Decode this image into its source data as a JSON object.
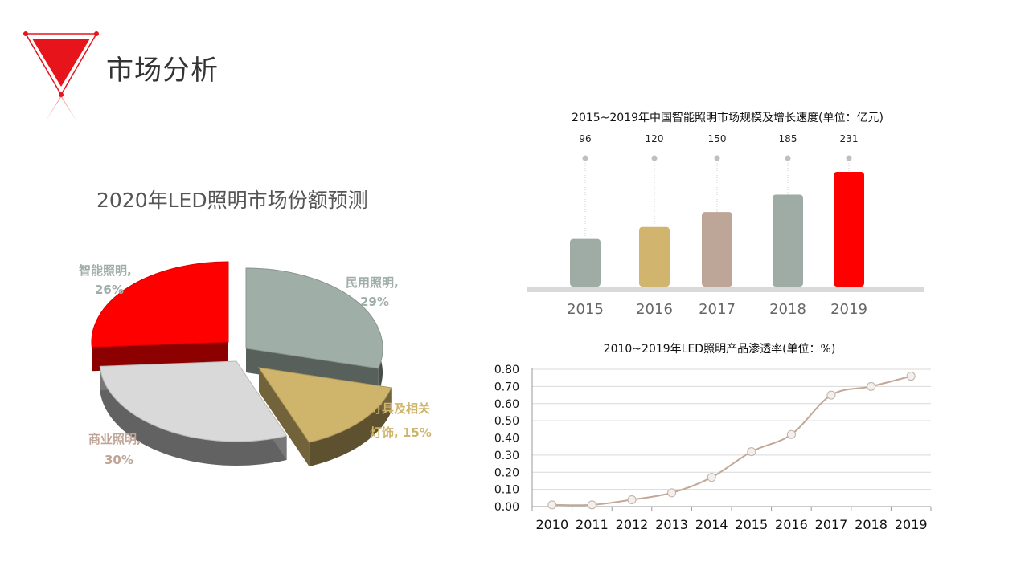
{
  "page": {
    "title": "市场分析"
  },
  "colors": {
    "accent": "#e8141b"
  },
  "chart_data": [
    {
      "type": "pie",
      "title": "2020年LED照明市场份额预测",
      "slices": [
        {
          "name": "智能照明",
          "value": 26,
          "label": "26%",
          "color": "#ff0000"
        },
        {
          "name": "民用照明",
          "value": 29,
          "label": "29%",
          "color": "#a0aea8"
        },
        {
          "name": "灯具及相关灯饰",
          "name_line1": "灯具及相关",
          "name_line2": "灯饰",
          "value": 15,
          "label": "15%",
          "color": "#cfb46b"
        },
        {
          "name": "商业照明",
          "value": 30,
          "label": "30%",
          "color": "#d9d9d9"
        }
      ]
    },
    {
      "type": "bar",
      "title": "2015~2019年中国智能照明市场规模及增长速度(单位：亿元)",
      "categories": [
        "2015",
        "2016",
        "2017",
        "2018",
        "2019"
      ],
      "values": [
        96,
        120,
        150,
        185,
        231
      ],
      "colors": [
        "#9faca6",
        "#d1b56f",
        "#bda597",
        "#9faca6",
        "#ff0000"
      ]
    },
    {
      "type": "line",
      "title": "2010~2019年LED照明产品渗透率(单位：%)",
      "x": [
        "2010",
        "2011",
        "2012",
        "2013",
        "2014",
        "2015",
        "2016",
        "2017",
        "2018",
        "2019"
      ],
      "y": [
        0.01,
        0.01,
        0.04,
        0.08,
        0.17,
        0.32,
        0.42,
        0.65,
        0.7,
        0.76
      ],
      "ylim": [
        0,
        0.8
      ],
      "yticks": [
        "0.00",
        "0.10",
        "0.20",
        "0.30",
        "0.40",
        "0.50",
        "0.60",
        "0.70",
        "0.80"
      ],
      "grid": true,
      "line_color": "#c3a898"
    }
  ]
}
